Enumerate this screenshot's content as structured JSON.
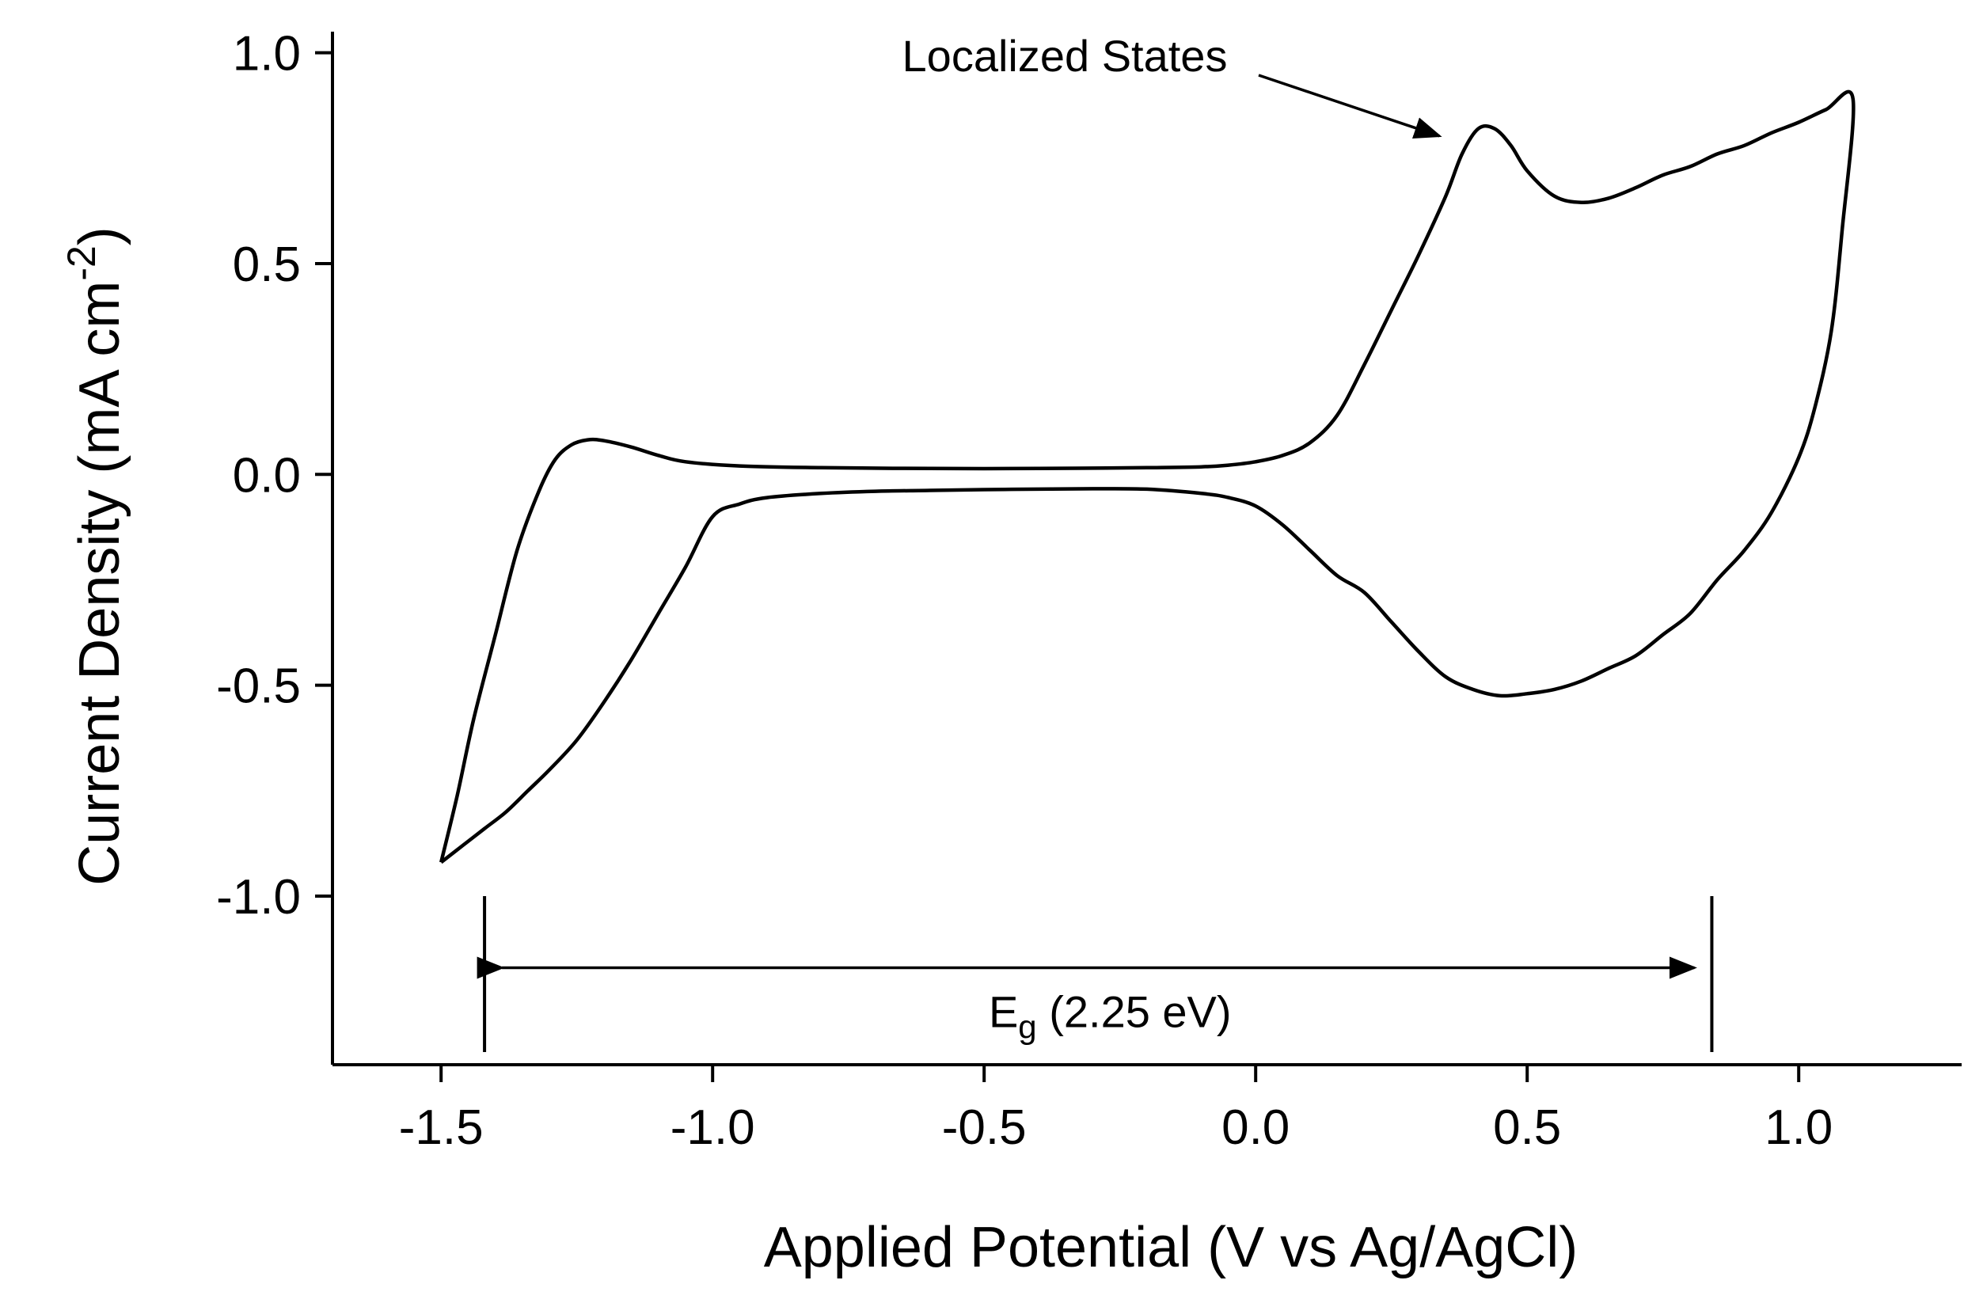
{
  "chart_data": {
    "type": "line",
    "title": "",
    "xlabel": "Applied Potential (V vs Ag/AgCl)",
    "ylabel": {
      "text": "Current Density (mA cm",
      "superscript": "-2",
      "close": ")"
    },
    "xlim": [
      -1.7,
      1.3
    ],
    "ylim": [
      -1.4,
      1.05
    ],
    "x_ticks": [
      {
        "value": -1.5,
        "label": "-1.5"
      },
      {
        "value": -1.0,
        "label": "-1.0"
      },
      {
        "value": -0.5,
        "label": "-0.5"
      },
      {
        "value": 0.0,
        "label": "0.0"
      },
      {
        "value": 0.5,
        "label": "0.5"
      },
      {
        "value": 1.0,
        "label": "1.0"
      }
    ],
    "y_ticks": [
      {
        "value": 1.0,
        "label": "1.0"
      },
      {
        "value": 0.5,
        "label": "0.5"
      },
      {
        "value": 0.0,
        "label": "0.0"
      },
      {
        "value": -0.5,
        "label": "-0.5"
      },
      {
        "value": -1.0,
        "label": "-1.0"
      }
    ],
    "grid": false,
    "series": [
      {
        "values": [
          [
            -1.5,
            -0.92
          ],
          [
            -1.46,
            -0.88
          ],
          [
            -1.42,
            -0.84
          ],
          [
            -1.38,
            -0.8
          ],
          [
            -1.34,
            -0.75
          ],
          [
            -1.3,
            -0.7
          ],
          [
            -1.25,
            -0.63
          ],
          [
            -1.2,
            -0.54
          ],
          [
            -1.15,
            -0.44
          ],
          [
            -1.1,
            -0.33
          ],
          [
            -1.05,
            -0.22
          ],
          [
            -1.0,
            -0.1
          ],
          [
            -0.95,
            -0.07
          ],
          [
            -0.9,
            -0.055
          ],
          [
            -0.8,
            -0.045
          ],
          [
            -0.7,
            -0.04
          ],
          [
            -0.6,
            -0.038
          ],
          [
            -0.5,
            -0.036
          ],
          [
            -0.4,
            -0.035
          ],
          [
            -0.3,
            -0.034
          ],
          [
            -0.2,
            -0.035
          ],
          [
            -0.1,
            -0.045
          ],
          [
            -0.05,
            -0.055
          ],
          [
            0.0,
            -0.075
          ],
          [
            0.05,
            -0.12
          ],
          [
            0.1,
            -0.18
          ],
          [
            0.15,
            -0.24
          ],
          [
            0.2,
            -0.28
          ],
          [
            0.25,
            -0.35
          ],
          [
            0.3,
            -0.42
          ],
          [
            0.35,
            -0.48
          ],
          [
            0.4,
            -0.51
          ],
          [
            0.45,
            -0.525
          ],
          [
            0.5,
            -0.52
          ],
          [
            0.55,
            -0.51
          ],
          [
            0.6,
            -0.49
          ],
          [
            0.65,
            -0.46
          ],
          [
            0.7,
            -0.43
          ],
          [
            0.75,
            -0.38
          ],
          [
            0.8,
            -0.33
          ],
          [
            0.85,
            -0.25
          ],
          [
            0.9,
            -0.18
          ],
          [
            0.95,
            -0.09
          ],
          [
            1.0,
            0.04
          ],
          [
            1.03,
            0.16
          ],
          [
            1.06,
            0.34
          ],
          [
            1.08,
            0.58
          ],
          [
            1.1,
            0.89
          ],
          [
            1.05,
            0.865
          ],
          [
            1.0,
            0.835
          ],
          [
            0.95,
            0.81
          ],
          [
            0.9,
            0.78
          ],
          [
            0.85,
            0.76
          ],
          [
            0.8,
            0.73
          ],
          [
            0.75,
            0.71
          ],
          [
            0.7,
            0.68
          ],
          [
            0.65,
            0.655
          ],
          [
            0.6,
            0.645
          ],
          [
            0.55,
            0.66
          ],
          [
            0.5,
            0.72
          ],
          [
            0.47,
            0.78
          ],
          [
            0.44,
            0.82
          ],
          [
            0.41,
            0.82
          ],
          [
            0.38,
            0.76
          ],
          [
            0.35,
            0.66
          ],
          [
            0.3,
            0.52
          ],
          [
            0.25,
            0.39
          ],
          [
            0.2,
            0.26
          ],
          [
            0.15,
            0.14
          ],
          [
            0.1,
            0.075
          ],
          [
            0.05,
            0.045
          ],
          [
            0.0,
            0.03
          ],
          [
            -0.05,
            0.022
          ],
          [
            -0.1,
            0.018
          ],
          [
            -0.2,
            0.016
          ],
          [
            -0.4,
            0.014
          ],
          [
            -0.6,
            0.014
          ],
          [
            -0.8,
            0.016
          ],
          [
            -0.95,
            0.02
          ],
          [
            -1.05,
            0.03
          ],
          [
            -1.1,
            0.045
          ],
          [
            -1.15,
            0.065
          ],
          [
            -1.2,
            0.08
          ],
          [
            -1.23,
            0.082
          ],
          [
            -1.26,
            0.07
          ],
          [
            -1.29,
            0.035
          ],
          [
            -1.32,
            -0.04
          ],
          [
            -1.36,
            -0.18
          ],
          [
            -1.4,
            -0.38
          ],
          [
            -1.44,
            -0.58
          ],
          [
            -1.47,
            -0.76
          ],
          [
            -1.5,
            -0.92
          ]
        ]
      }
    ],
    "annotations": [
      {
        "id": "localized-states",
        "text": "Localized States",
        "arrow_tip": [
          0.35,
          0.78
        ]
      },
      {
        "id": "band-gap",
        "text_main": "E",
        "text_sub": "g",
        "text_rest": " (2.25 eV)",
        "x_start": -1.42,
        "x_end": 0.84,
        "arrow_y": -1.17,
        "bar_y_top": -1.0,
        "bar_y_bottom": -1.37
      }
    ]
  }
}
